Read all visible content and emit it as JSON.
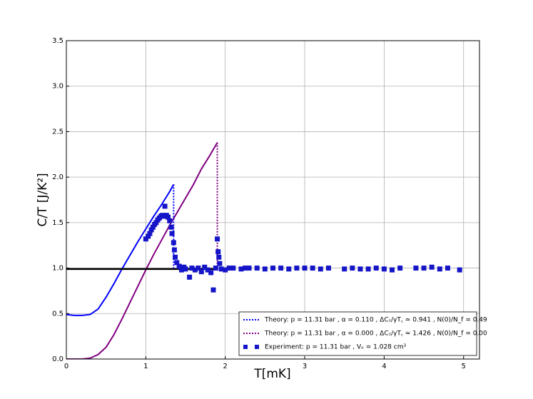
{
  "chart_data": {
    "type": "line",
    "xlabel": "T[mK]",
    "ylabel": "C/T [J/K²]",
    "xlim": [
      0,
      5.2
    ],
    "ylim": [
      0,
      3.5
    ],
    "xticks": [
      0,
      1,
      2,
      3,
      4,
      5
    ],
    "yticks": [
      {
        "value": 0,
        "label": "0.0"
      },
      {
        "value": 0.5,
        "label": "0.5"
      },
      {
        "value": 1,
        "label": "1.0"
      },
      {
        "value": 1.5,
        "label": "1.5"
      },
      {
        "value": 2,
        "label": "2.0"
      },
      {
        "value": 2.5,
        "label": "2.5"
      },
      {
        "value": 3,
        "label": "3.0"
      },
      {
        "value": 3.5,
        "label": "3.5"
      }
    ],
    "grid": true,
    "legend": "lower right",
    "series": [
      {
        "color": "#0000ff",
        "style": "solid",
        "x": [
          0,
          0.1,
          0.2,
          0.3,
          0.4,
          0.5,
          0.6,
          0.7,
          0.8,
          0.9,
          1.0,
          1.1,
          1.2,
          1.3,
          1.35
        ],
        "values": [
          0.49,
          0.48,
          0.48,
          0.49,
          0.55,
          0.68,
          0.83,
          0.99,
          1.14,
          1.29,
          1.43,
          1.57,
          1.7,
          1.84,
          1.92
        ]
      },
      {
        "color": "#800080",
        "style": "solid",
        "x": [
          0,
          0.2,
          0.3,
          0.4,
          0.5,
          0.6,
          0.7,
          0.8,
          0.9,
          1.0,
          1.1,
          1.2,
          1.3,
          1.4,
          1.5,
          1.6,
          1.7,
          1.8,
          1.9
        ],
        "values": [
          0,
          0,
          0.01,
          0.05,
          0.13,
          0.27,
          0.44,
          0.62,
          0.8,
          0.98,
          1.15,
          1.31,
          1.47,
          1.62,
          1.77,
          1.92,
          2.09,
          2.23,
          2.38
        ]
      },
      {
        "color": "#000000",
        "style": "solid",
        "width": 2.5,
        "x": [
          0,
          1.9
        ],
        "values": [
          0.99,
          0.99
        ]
      },
      {
        "name": "Theory: p = 11.31 bar , α = 0.110 , ΔCₛ/γT꜀ ≃ 0.941 , N(0)/N_f = 0.49",
        "color": "#0000ff",
        "style": "dotted",
        "x": [
          1.35,
          1.35
        ],
        "values": [
          1.92,
          1.0
        ]
      },
      {
        "name": "Theory: p = 11.31 bar , α = 0.000 , ΔCₛ/γT꜀ ≃ 1.426 , N(0)/N_f = 0.00",
        "color": "#800080",
        "style": "dotted",
        "x": [
          1.9,
          1.9
        ],
        "values": [
          2.38,
          1.0
        ]
      },
      {
        "name": "Experiment: p = 11.31 bar , Vₒ = 1.028 cm³",
        "color": "#1414c8",
        "style": "markers",
        "x": [
          1.0,
          1.03,
          1.05,
          1.07,
          1.09,
          1.11,
          1.13,
          1.15,
          1.17,
          1.19,
          1.21,
          1.23,
          1.24,
          1.26,
          1.28,
          1.3,
          1.32,
          1.33,
          1.35,
          1.36,
          1.37,
          1.39,
          1.42,
          1.45,
          1.48,
          1.5,
          1.55,
          1.58,
          1.62,
          1.66,
          1.7,
          1.74,
          1.78,
          1.82,
          1.85,
          1.88,
          1.9,
          1.91,
          1.92,
          1.93,
          1.95,
          2.0,
          2.05,
          2.1,
          2.2,
          2.25,
          2.3,
          2.4,
          2.5,
          2.6,
          2.7,
          2.8,
          2.9,
          3.0,
          3.1,
          3.2,
          3.3,
          3.5,
          3.6,
          3.7,
          3.8,
          3.9,
          4.0,
          4.1,
          4.2,
          4.4,
          4.5,
          4.6,
          4.7,
          4.8,
          4.95
        ],
        "values": [
          1.32,
          1.35,
          1.38,
          1.42,
          1.45,
          1.48,
          1.5,
          1.53,
          1.55,
          1.57,
          1.58,
          1.57,
          1.68,
          1.58,
          1.56,
          1.52,
          1.45,
          1.38,
          1.28,
          1.2,
          1.12,
          1.06,
          1.02,
          0.98,
          1.01,
          0.99,
          0.9,
          1.0,
          0.98,
          1.0,
          0.96,
          1.01,
          0.98,
          0.95,
          0.76,
          1.0,
          1.32,
          1.18,
          1.12,
          1.05,
          0.99,
          0.98,
          1.0,
          1.0,
          0.99,
          1.0,
          1.0,
          1.0,
          0.99,
          1.0,
          1.0,
          0.99,
          1.0,
          1.0,
          1.0,
          0.99,
          1.0,
          0.99,
          1.0,
          0.99,
          0.99,
          1.0,
          0.99,
          0.98,
          1.0,
          1.0,
          1.0,
          1.01,
          0.99,
          1.0,
          0.98
        ]
      }
    ]
  }
}
